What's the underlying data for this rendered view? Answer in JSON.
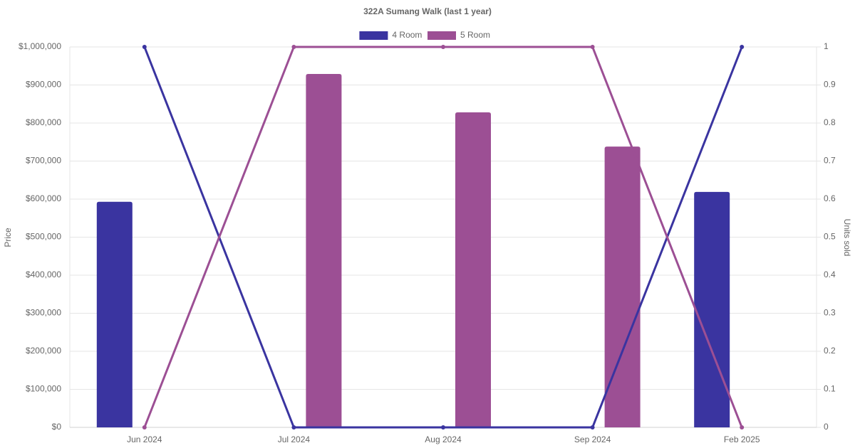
{
  "chart_data": {
    "type": "bar-line",
    "title": "322A Sumang Walk (last 1 year)",
    "categories": [
      "Jun 2024",
      "Jul 2024",
      "Aug 2024",
      "Sep 2024",
      "Feb 2025"
    ],
    "series": [
      {
        "name": "4 Room",
        "type": "bar",
        "color": "#3a34a0",
        "values": [
          593000,
          null,
          null,
          null,
          619000
        ]
      },
      {
        "name": "5 Room",
        "type": "bar",
        "color": "#9c4f94",
        "values": [
          null,
          929000,
          828000,
          738000,
          null
        ]
      },
      {
        "type": "line",
        "axis": "y2",
        "color": "#3a34a0",
        "values": [
          1,
          0,
          0,
          0,
          1
        ]
      },
      {
        "type": "line",
        "axis": "y2",
        "color": "#9c4f94",
        "values": [
          0,
          1,
          1,
          1,
          0
        ]
      }
    ],
    "ylabel": "Price",
    "y2label": "Units sold",
    "ylim": [
      0,
      1000000
    ],
    "yticks": [
      {
        "value": 0,
        "label": "$0"
      },
      {
        "value": 100000,
        "label": "$100,000"
      },
      {
        "value": 200000,
        "label": "$200,000"
      },
      {
        "value": 300000,
        "label": "$300,000"
      },
      {
        "value": 400000,
        "label": "$400,000"
      },
      {
        "value": 500000,
        "label": "$500,000"
      },
      {
        "value": 600000,
        "label": "$600,000"
      },
      {
        "value": 700000,
        "label": "$700,000"
      },
      {
        "value": 800000,
        "label": "$800,000"
      },
      {
        "value": 900000,
        "label": "$900,000"
      },
      {
        "value": 1000000,
        "label": "$1,000,000"
      }
    ],
    "y2lim": [
      0,
      1
    ],
    "y2ticks": [
      0,
      0.1,
      0.2,
      0.3,
      0.4,
      0.5,
      0.6,
      0.7,
      0.8,
      0.9,
      1
    ],
    "grid": true
  }
}
